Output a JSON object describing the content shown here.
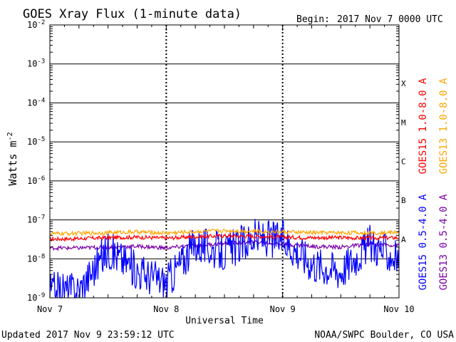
{
  "chart_data": {
    "type": "line",
    "title": "GOES Xray Flux (1-minute data)",
    "begin_label": "Begin:",
    "begin_value": "2017 Nov 7 0000 UTC",
    "xlabel": "Universal Time",
    "ylabel_base": "Watts m",
    "ylabel_exponent": "-2",
    "y_scale": "log",
    "ylim": [
      1e-09,
      0.01
    ],
    "xlim": [
      "2017-11-07 00:00",
      "2017-11-10 00:00"
    ],
    "x_ticks": [
      "Nov 7",
      "Nov 8",
      "Nov 9",
      "Nov 10"
    ],
    "y_tick_base": "10",
    "y_ticks": [
      {
        "value": 1e-09,
        "exponent": "-9"
      },
      {
        "value": 1e-08,
        "exponent": "-8"
      },
      {
        "value": 1e-07,
        "exponent": "-7"
      },
      {
        "value": 1e-06,
        "exponent": "-6"
      },
      {
        "value": 1e-05,
        "exponent": "-5"
      },
      {
        "value": 0.0001,
        "exponent": "-4"
      },
      {
        "value": 0.001,
        "exponent": "-3"
      },
      {
        "value": 0.01,
        "exponent": "-2"
      }
    ],
    "flare_classes": [
      {
        "label": "A",
        "value": 3.16e-08
      },
      {
        "label": "B",
        "value": 3.16e-07
      },
      {
        "label": "C",
        "value": 3.16e-06
      },
      {
        "label": "M",
        "value": 3.16e-05
      },
      {
        "label": "X",
        "value": 0.000316
      }
    ],
    "grid": true,
    "legend_placement": "right",
    "x": [
      "2017-11-07 00:00",
      "2017-11-07 06:00",
      "2017-11-07 12:00",
      "2017-11-07 18:00",
      "2017-11-08 00:00",
      "2017-11-08 06:00",
      "2017-11-08 12:00",
      "2017-11-08 18:00",
      "2017-11-09 00:00",
      "2017-11-09 06:00",
      "2017-11-09 12:00",
      "2017-11-09 18:00",
      "2017-11-10 00:00"
    ],
    "series": [
      {
        "name": "GOES15 1.0-8.0 A",
        "color": "#ff0000",
        "values": [
          3.2e-08,
          3.3e-08,
          3.5e-08,
          3.6e-08,
          3.4e-08,
          3.7e-08,
          3.9e-08,
          3.8e-08,
          3.6e-08,
          3.5e-08,
          3.5e-08,
          3.4e-08,
          3.5e-08
        ]
      },
      {
        "name": "GOES13 1.0-8.0 A",
        "color": "#ffa500",
        "values": [
          4.4e-08,
          4.5e-08,
          4.7e-08,
          4.9e-08,
          4.6e-08,
          5e-08,
          5.3e-08,
          5.1e-08,
          4.9e-08,
          4.7e-08,
          4.7e-08,
          4.6e-08,
          4.8e-08
        ]
      },
      {
        "name": "GOES15 0.5-4.0 A",
        "color": "#0000ff",
        "values": [
          1.5e-09,
          1.6e-09,
          1.8e-08,
          5e-09,
          2.5e-09,
          2.5e-08,
          1.4e-08,
          3.5e-08,
          3.2e-08,
          8e-09,
          5e-09,
          2.5e-08,
          1e-08
        ]
      },
      {
        "name": "GOES13 0.5-4.0 A",
        "color": "#7a00a8",
        "values": [
          1.9e-08,
          1.9e-08,
          2e-08,
          2.1e-08,
          1.9e-08,
          2.2e-08,
          2.5e-08,
          2.7e-08,
          2.4e-08,
          2.1e-08,
          2e-08,
          2.4e-08,
          2.2e-08
        ]
      }
    ]
  },
  "footer": {
    "updated": "Updated 2017 Nov  9 23:59:12 UTC",
    "credit": "NOAA/SWPC Boulder, CO USA"
  }
}
